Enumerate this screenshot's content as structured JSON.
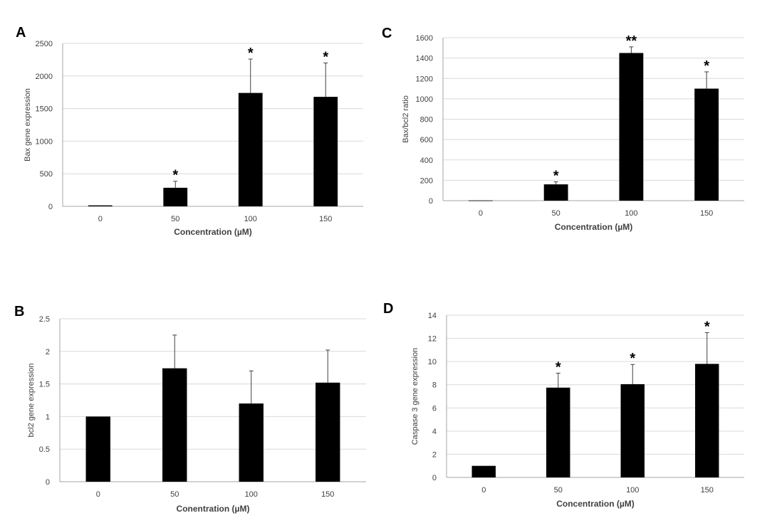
{
  "chart_data": [
    {
      "panel": "A",
      "type": "bar",
      "categories": [
        "0",
        "50",
        "100",
        "150"
      ],
      "values": [
        15,
        285,
        1740,
        1680
      ],
      "errors": [
        0,
        100,
        520,
        520
      ],
      "significance": [
        "",
        "*",
        "*",
        "*"
      ],
      "xlabel": "Concentration (µM)",
      "ylabel": "Bax gene expression",
      "ylim": [
        0,
        2500
      ],
      "yticks": [
        "0",
        "500",
        "1000",
        "1500",
        "2000",
        "2500"
      ],
      "grid": true,
      "color": "#000000"
    },
    {
      "panel": "C",
      "type": "bar",
      "categories": [
        "0",
        "50",
        "100",
        "150"
      ],
      "values": [
        2,
        160,
        1450,
        1100
      ],
      "errors": [
        0,
        25,
        60,
        165
      ],
      "significance": [
        "",
        "*",
        "**",
        "*"
      ],
      "xlabel": "Concentration (µM)",
      "ylabel": "Bax/bcl2 ratio",
      "ylim": [
        0,
        1600
      ],
      "yticks": [
        "0",
        "200",
        "400",
        "600",
        "800",
        "1000",
        "1200",
        "1400",
        "1600"
      ],
      "grid": true,
      "color": "#000000"
    },
    {
      "panel": "B",
      "type": "bar",
      "categories": [
        "0",
        "50",
        "100",
        "150"
      ],
      "values": [
        1.0,
        1.74,
        1.2,
        1.52
      ],
      "errors": [
        0,
        0.51,
        0.5,
        0.5
      ],
      "significance": [
        "",
        "",
        "",
        ""
      ],
      "xlabel": "Conentration (µM)",
      "ylabel": "bcl2 gene expression",
      "ylim": [
        0,
        2.5
      ],
      "yticks": [
        "0",
        "0.5",
        "1",
        "1.5",
        "2",
        "2.5"
      ],
      "grid": true,
      "color": "#000000"
    },
    {
      "panel": "D",
      "type": "bar",
      "categories": [
        "0",
        "50",
        "100",
        "150"
      ],
      "values": [
        1.0,
        7.75,
        8.05,
        9.8
      ],
      "errors": [
        0,
        1.25,
        1.7,
        2.7
      ],
      "significance": [
        "",
        "*",
        "*",
        "*"
      ],
      "xlabel": "Concentration (µM)",
      "ylabel": "Caspase 3 gene expression",
      "ylim": [
        0,
        14
      ],
      "yticks": [
        "0",
        "2",
        "4",
        "6",
        "8",
        "10",
        "12",
        "14"
      ],
      "grid": true,
      "color": "#000000"
    }
  ]
}
